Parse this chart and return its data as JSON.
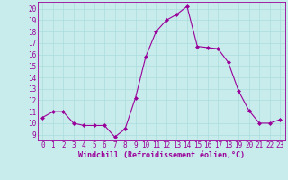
{
  "x": [
    0,
    1,
    2,
    3,
    4,
    5,
    6,
    7,
    8,
    9,
    10,
    11,
    12,
    13,
    14,
    15,
    16,
    17,
    18,
    19,
    20,
    21,
    22,
    23
  ],
  "y": [
    10.5,
    11.0,
    11.0,
    10.0,
    9.8,
    9.8,
    9.8,
    8.8,
    9.5,
    12.2,
    15.8,
    18.0,
    19.0,
    19.5,
    20.2,
    16.7,
    16.6,
    16.5,
    15.3,
    12.8,
    11.1,
    10.0,
    10.0,
    10.3
  ],
  "line_color": "#990099",
  "marker": "D",
  "marker_size": 2.0,
  "bg_color": "#c8ecec",
  "grid_color": "#aadddd",
  "xlabel": "Windchill (Refroidissement éolien,°C)",
  "xlabel_color": "#990099",
  "xlabel_fontsize": 6.0,
  "tick_color": "#990099",
  "tick_fontsize": 5.5,
  "yticks": [
    9,
    10,
    11,
    12,
    13,
    14,
    15,
    16,
    17,
    18,
    19,
    20
  ],
  "ylim": [
    8.5,
    20.6
  ],
  "xlim": [
    -0.5,
    23.5
  ]
}
